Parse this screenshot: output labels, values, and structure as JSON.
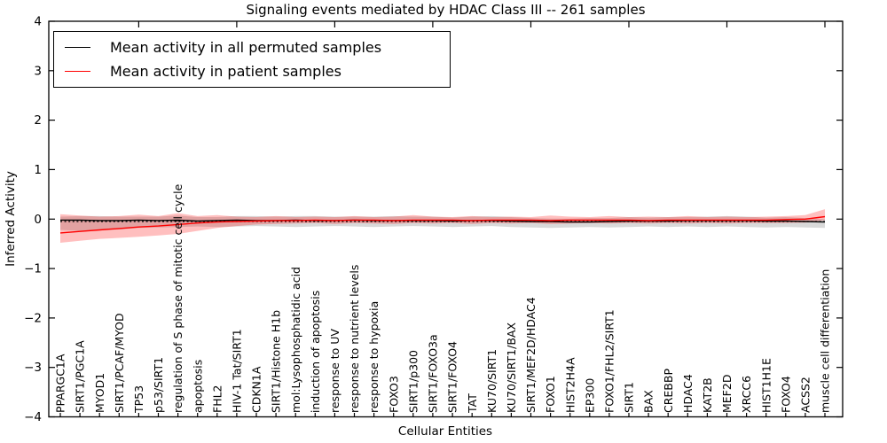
{
  "title": "Signaling events mediated by HDAC Class III -- 261 samples",
  "axes": {
    "x_label": "Cellular Entities",
    "y_label": "Inferred Activity",
    "y_ticks": [
      4,
      3,
      2,
      1,
      0,
      -1,
      -2,
      -3,
      -4
    ],
    "ylim": [
      -4,
      4
    ]
  },
  "legend": {
    "items": [
      {
        "label": "Mean activity in all permuted samples",
        "color": "#000000"
      },
      {
        "label": "Mean activity in patient samples",
        "color": "#ff0000"
      }
    ]
  },
  "chart_data": {
    "type": "line",
    "title": "Signaling events mediated by HDAC Class III -- 261 samples",
    "xlabel": "Cellular Entities",
    "ylabel": "Inferred Activity",
    "ylim": [
      -4,
      4
    ],
    "grid": false,
    "legend_position": "upper left",
    "categories": [
      "PPARGC1A",
      "SIRT1/PGC1A",
      "MYOD1",
      "SIRT1/PCAF/MYOD",
      "TP53",
      "p53/SIRT1",
      "regulation of S phase of mitotic cell cycle",
      "apoptosis",
      "FHL2",
      "HIV-1 Tat/SIRT1",
      "CDKN1A",
      "SIRT1/Histone H1b",
      "mol:Lysophosphatidic acid",
      "induction of apoptosis",
      "response to UV",
      "response to nutrient levels",
      "response to hypoxia",
      "FOXO3",
      "SIRT1/p300",
      "SIRT1/FOXO3a",
      "SIRT1/FOXO4",
      "TAT",
      "KU70/SIRT1",
      "KU70/SIRT1/BAX",
      "SIRT1/MEF2D/HDAC4",
      "FOXO1",
      "HIST2H4A",
      "EP300",
      "FOXO1/FHL2/SIRT1",
      "SIRT1",
      "BAX",
      "CREBBP",
      "HDAC4",
      "KAT2B",
      "MEF2D",
      "XRCC6",
      "HIST1H1E",
      "FOXO4",
      "ACSS2",
      "muscle cell differentiation"
    ],
    "series": [
      {
        "name": "Mean activity in all permuted samples",
        "color": "#000000",
        "values": [
          -0.02,
          -0.02,
          -0.03,
          -0.03,
          -0.02,
          -0.03,
          -0.02,
          -0.04,
          -0.03,
          -0.02,
          -0.03,
          -0.03,
          -0.02,
          -0.03,
          -0.03,
          -0.02,
          -0.03,
          -0.03,
          -0.03,
          -0.03,
          -0.04,
          -0.03,
          -0.03,
          -0.04,
          -0.05,
          -0.05,
          -0.06,
          -0.06,
          -0.05,
          -0.04,
          -0.04,
          -0.04,
          -0.03,
          -0.03,
          -0.03,
          -0.03,
          -0.04,
          -0.04,
          -0.05,
          -0.06
        ]
      },
      {
        "name": "Mean activity in patient samples",
        "color": "#ff0000",
        "values": [
          -0.28,
          -0.25,
          -0.22,
          -0.19,
          -0.16,
          -0.14,
          -0.11,
          -0.08,
          -0.06,
          -0.05,
          -0.04,
          -0.03,
          -0.03,
          -0.02,
          -0.03,
          -0.02,
          -0.02,
          -0.03,
          -0.02,
          -0.02,
          -0.02,
          -0.03,
          -0.02,
          -0.02,
          -0.02,
          -0.03,
          -0.02,
          -0.02,
          -0.02,
          -0.02,
          -0.03,
          -0.02,
          -0.02,
          -0.02,
          -0.02,
          -0.02,
          -0.02,
          -0.01,
          0.0,
          0.05
        ]
      }
    ],
    "baseline": {
      "style": "dashed",
      "color": "#000000",
      "value": -0.05
    },
    "bands": [
      {
        "name": "permuted-range",
        "color": "rgba(0,0,0,0.15)",
        "upper": [
          0.05,
          0.06,
          0.06,
          0.05,
          0.05,
          0.05,
          0.07,
          0.04,
          0.04,
          0.06,
          0.06,
          0.05,
          0.06,
          0.06,
          0.05,
          0.05,
          0.05,
          0.06,
          0.05,
          0.05,
          0.03,
          0.05,
          0.06,
          0.04,
          0.02,
          0.01,
          0.01,
          0.02,
          0.02,
          0.04,
          0.03,
          0.04,
          0.04,
          0.05,
          0.06,
          0.05,
          0.03,
          0.04,
          0.02,
          0.0
        ],
        "lower": [
          -0.22,
          -0.24,
          -0.23,
          -0.21,
          -0.18,
          -0.17,
          -0.16,
          -0.15,
          -0.16,
          -0.15,
          -0.14,
          -0.15,
          -0.16,
          -0.15,
          -0.14,
          -0.15,
          -0.16,
          -0.15,
          -0.14,
          -0.15,
          -0.16,
          -0.15,
          -0.14,
          -0.16,
          -0.17,
          -0.18,
          -0.17,
          -0.16,
          -0.17,
          -0.16,
          -0.15,
          -0.16,
          -0.15,
          -0.16,
          -0.15,
          -0.16,
          -0.17,
          -0.16,
          -0.17,
          -0.18
        ]
      },
      {
        "name": "patient-range",
        "color": "rgba(255,0,0,0.25)",
        "upper": [
          0.1,
          0.07,
          0.05,
          0.06,
          0.09,
          0.06,
          0.12,
          0.06,
          0.08,
          0.05,
          0.04,
          0.06,
          0.04,
          0.05,
          0.04,
          0.06,
          0.04,
          0.05,
          0.08,
          0.05,
          0.04,
          0.06,
          0.04,
          0.05,
          0.04,
          0.07,
          0.05,
          0.04,
          0.06,
          0.04,
          0.05,
          0.04,
          0.06,
          0.04,
          0.05,
          0.04,
          0.05,
          0.06,
          0.08,
          0.2
        ],
        "lower": [
          -0.48,
          -0.44,
          -0.4,
          -0.38,
          -0.36,
          -0.33,
          -0.3,
          -0.24,
          -0.18,
          -0.14,
          -0.11,
          -0.1,
          -0.09,
          -0.08,
          -0.1,
          -0.08,
          -0.09,
          -0.1,
          -0.08,
          -0.09,
          -0.08,
          -0.1,
          -0.08,
          -0.09,
          -0.08,
          -0.1,
          -0.09,
          -0.08,
          -0.09,
          -0.08,
          -0.09,
          -0.08,
          -0.09,
          -0.08,
          -0.09,
          -0.08,
          -0.08,
          -0.08,
          -0.07,
          -0.02
        ]
      }
    ]
  }
}
